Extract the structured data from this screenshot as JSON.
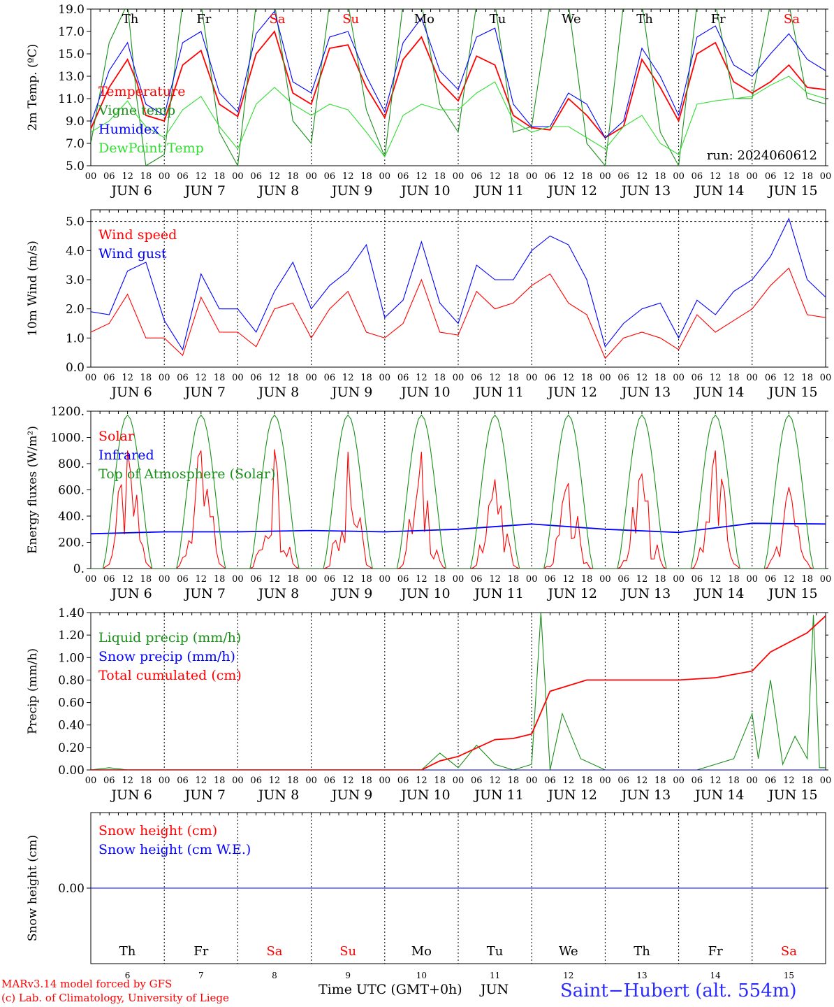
{
  "run_label": "run: 2024060612",
  "footer": {
    "model": "MARv3.14 model forced by GFS",
    "credit": "(c) Lab. of Climatology, University of Liege",
    "xlabel": "Time UTC (GMT+0h)",
    "month": "JUN",
    "station": "Saint−Hubert (alt. 554m)"
  },
  "days": [
    {
      "dow": "Th",
      "date": "6",
      "weekend": false
    },
    {
      "dow": "Fr",
      "date": "7",
      "weekend": false
    },
    {
      "dow": "Sa",
      "date": "8",
      "weekend": true
    },
    {
      "dow": "Su",
      "date": "9",
      "weekend": true
    },
    {
      "dow": "Mo",
      "date": "10",
      "weekend": false
    },
    {
      "dow": "Tu",
      "date": "11",
      "weekend": false
    },
    {
      "dow": "We",
      "date": "12",
      "weekend": false
    },
    {
      "dow": "Th",
      "date": "13",
      "weekend": false
    },
    {
      "dow": "Fr",
      "date": "14",
      "weekend": false
    },
    {
      "dow": "Sa",
      "date": "15",
      "weekend": true
    }
  ],
  "hour_ticks": [
    "00",
    "06",
    "12",
    "18"
  ],
  "colors": {
    "red": "#ff0000",
    "green": "#1a8f1a",
    "blue": "#0000ff",
    "lightgreen": "#33dd33",
    "weekend": "#ff0000",
    "purple": "#8a2be2"
  },
  "chart_data": [
    {
      "type": "line",
      "ylabel": "2m Temp. (ºC)",
      "ylim": [
        5.0,
        19.0
      ],
      "yticks": [
        "5.0",
        "7.0",
        "9.0",
        "11.0",
        "13.0",
        "15.0",
        "17.0",
        "19.0"
      ],
      "hour_step": 3,
      "series": [
        {
          "name": "Temperature",
          "color": "red",
          "x": [
            0,
            6,
            12,
            15,
            18,
            24,
            30,
            36,
            42,
            48,
            54,
            60,
            66,
            72,
            78,
            84,
            90,
            96,
            102,
            108,
            114,
            120,
            126,
            132,
            138,
            144,
            150,
            156,
            162,
            168,
            174,
            180,
            186,
            192,
            198,
            204,
            210,
            216,
            222,
            228,
            234,
            240
          ],
          "values": [
            8.3,
            12.0,
            14.5,
            12.5,
            9.5,
            9.0,
            14.0,
            15.3,
            10.5,
            9.4,
            15.0,
            17.0,
            11.5,
            10.5,
            15.5,
            15.8,
            12.0,
            9.3,
            14.5,
            16.5,
            12.5,
            10.8,
            14.8,
            14.0,
            9.5,
            8.4,
            8.2,
            11.0,
            9.5,
            7.5,
            8.5,
            14.5,
            12.0,
            9.0,
            15.0,
            16.0,
            12.5,
            11.5,
            12.5,
            14.0,
            12.0,
            11.8
          ]
        },
        {
          "name": "Vigne temp",
          "color": "green",
          "x": [
            0,
            6,
            12,
            15,
            18,
            24,
            30,
            36,
            42,
            48,
            54,
            60,
            66,
            72,
            78,
            84,
            90,
            96,
            102,
            108,
            114,
            120,
            126,
            132,
            138,
            144,
            150,
            156,
            162,
            168,
            174,
            180,
            186,
            192,
            198,
            204,
            210,
            216,
            222,
            228,
            234,
            240
          ],
          "values": [
            7.0,
            16.0,
            19.5,
            11.0,
            5.0,
            6.0,
            19.5,
            19.5,
            8.0,
            5.0,
            19.5,
            19.5,
            9.0,
            7.0,
            19.5,
            19.5,
            10.0,
            5.8,
            19.5,
            19.5,
            10.5,
            8.0,
            19.5,
            19.5,
            8.0,
            8.5,
            19.5,
            19.5,
            7.0,
            5.0,
            19.5,
            19.5,
            8.0,
            5.0,
            19.5,
            19.5,
            11.0,
            11.0,
            19.5,
            19.5,
            11.0,
            10.5
          ]
        },
        {
          "name": "Humidex",
          "color": "blue",
          "x": [
            0,
            6,
            12,
            15,
            18,
            24,
            30,
            36,
            42,
            48,
            54,
            60,
            66,
            72,
            78,
            84,
            90,
            96,
            102,
            108,
            114,
            120,
            126,
            132,
            138,
            144,
            150,
            156,
            162,
            168,
            174,
            180,
            186,
            192,
            198,
            204,
            210,
            216,
            222,
            228,
            234,
            240
          ],
          "values": [
            8.8,
            13.5,
            16.0,
            13.0,
            10.5,
            9.5,
            16.0,
            17.0,
            11.5,
            9.8,
            16.8,
            18.8,
            12.5,
            11.5,
            16.5,
            17.0,
            13.0,
            9.8,
            16.0,
            18.2,
            13.5,
            11.8,
            16.5,
            17.3,
            10.5,
            8.5,
            8.5,
            11.5,
            10.5,
            7.5,
            9.0,
            15.5,
            13.0,
            9.5,
            16.5,
            17.5,
            14.0,
            13.0,
            15.0,
            16.8,
            14.5,
            13.5
          ]
        },
        {
          "name": "DewPoint Temp",
          "color": "lightgreen",
          "x": [
            0,
            6,
            12,
            15,
            18,
            24,
            30,
            36,
            42,
            48,
            54,
            60,
            66,
            72,
            78,
            84,
            90,
            96,
            102,
            108,
            114,
            120,
            126,
            132,
            138,
            144,
            150,
            156,
            162,
            168,
            174,
            180,
            186,
            192,
            198,
            204,
            210,
            216,
            222,
            228,
            234,
            240
          ],
          "values": [
            8.0,
            9.0,
            10.8,
            9.5,
            8.5,
            7.5,
            10.0,
            11.2,
            8.5,
            6.5,
            10.5,
            12.0,
            10.5,
            9.5,
            10.5,
            10.0,
            8.0,
            5.8,
            9.5,
            10.5,
            10.0,
            10.0,
            11.5,
            12.5,
            9.0,
            8.0,
            8.5,
            8.5,
            7.5,
            6.5,
            8.5,
            9.5,
            7.0,
            6.0,
            10.5,
            10.8,
            11.0,
            11.2,
            12.2,
            13.0,
            11.5,
            11.0
          ]
        }
      ]
    },
    {
      "type": "line",
      "ylabel": "10m Wind (m/s)",
      "ylim": [
        0.0,
        5.4
      ],
      "yticks": [
        "0.0",
        "1.0",
        "2.0",
        "3.0",
        "4.0",
        "5.0"
      ],
      "reference_line": 5.0,
      "series": [
        {
          "name": "Wind speed",
          "color": "red",
          "x": [
            0,
            6,
            12,
            18,
            24,
            30,
            36,
            42,
            48,
            54,
            60,
            66,
            72,
            78,
            84,
            90,
            96,
            102,
            108,
            114,
            120,
            126,
            132,
            138,
            144,
            150,
            156,
            162,
            168,
            174,
            180,
            186,
            192,
            198,
            204,
            210,
            216,
            222,
            228,
            234,
            240
          ],
          "values": [
            1.2,
            1.5,
            2.5,
            1.0,
            1.0,
            0.4,
            2.4,
            1.2,
            1.2,
            0.7,
            2.0,
            2.2,
            1.0,
            2.0,
            2.6,
            1.2,
            1.0,
            1.5,
            3.0,
            1.2,
            1.1,
            2.6,
            2.0,
            2.2,
            2.8,
            3.2,
            2.2,
            1.8,
            0.3,
            1.0,
            1.2,
            1.0,
            0.6,
            1.8,
            1.2,
            1.6,
            2.0,
            2.8,
            3.4,
            1.8,
            1.7
          ]
        },
        {
          "name": "Wind gust",
          "color": "blue",
          "x": [
            0,
            6,
            12,
            18,
            24,
            30,
            36,
            42,
            48,
            54,
            60,
            66,
            72,
            78,
            84,
            90,
            96,
            102,
            108,
            114,
            120,
            126,
            132,
            138,
            144,
            150,
            156,
            162,
            168,
            174,
            180,
            186,
            192,
            198,
            204,
            210,
            216,
            222,
            228,
            234,
            240
          ],
          "values": [
            1.9,
            1.8,
            3.3,
            3.6,
            1.6,
            0.6,
            3.2,
            2.0,
            2.0,
            1.2,
            2.6,
            3.6,
            2.0,
            2.8,
            3.3,
            4.2,
            1.7,
            2.3,
            4.3,
            2.2,
            1.5,
            3.5,
            3.0,
            3.0,
            4.0,
            4.5,
            4.2,
            3.0,
            0.7,
            1.5,
            2.0,
            2.2,
            1.0,
            2.3,
            1.8,
            2.6,
            3.0,
            3.8,
            5.1,
            3.0,
            2.4
          ]
        }
      ]
    },
    {
      "type": "line",
      "ylabel": "Energy fluxes (W/m²)",
      "ylim": [
        0,
        1200
      ],
      "yticks": [
        "0.",
        "200.",
        "400.",
        "600.",
        "800.",
        "1000.",
        "1200."
      ],
      "series": [
        {
          "name": "Solar",
          "color": "red",
          "daily_peaks": [
            900,
            900,
            910,
            890,
            890,
            680,
            650,
            720,
            900,
            620
          ]
        },
        {
          "name": "Infrared",
          "color": "blue",
          "x": [
            0,
            24,
            48,
            72,
            96,
            120,
            144,
            168,
            192,
            216,
            240
          ],
          "values": [
            265,
            280,
            280,
            290,
            280,
            300,
            340,
            300,
            275,
            345,
            340
          ]
        },
        {
          "name": "Top of Atmosphere (Solar)",
          "color": "green",
          "daily_peaks": [
            1170,
            1170,
            1170,
            1170,
            1170,
            1170,
            1170,
            1170,
            1170,
            1170
          ]
        }
      ]
    },
    {
      "type": "line",
      "ylabel": "Precip (mm/h)",
      "ylim": [
        0.0,
        1.4
      ],
      "yticks": [
        "0.00",
        "0.20",
        "0.40",
        "0.60",
        "0.80",
        "1.00",
        "1.20",
        "1.40"
      ],
      "series": [
        {
          "name": "Liquid precip (mm/h)",
          "color": "green",
          "x": [
            0,
            6,
            12,
            108,
            114,
            120,
            126,
            132,
            138,
            144,
            147,
            150,
            154,
            160,
            168,
            198,
            204,
            210,
            216,
            218,
            222,
            226,
            230,
            234,
            236,
            238,
            240
          ],
          "values": [
            0.0,
            0.02,
            0.0,
            0.0,
            0.15,
            0.02,
            0.22,
            0.05,
            0.0,
            0.05,
            1.4,
            0.0,
            0.5,
            0.1,
            0.0,
            0.0,
            0.05,
            0.1,
            0.5,
            0.1,
            0.8,
            0.05,
            0.3,
            0.1,
            1.38,
            0.02,
            0.02
          ]
        },
        {
          "name": "Snow precip (mm/h)",
          "color": "blue",
          "x": [
            0,
            240
          ],
          "values": [
            0.0,
            0.0
          ]
        },
        {
          "name": "Total cumulated (cm)",
          "color": "red",
          "x": [
            0,
            108,
            114,
            120,
            132,
            138,
            144,
            150,
            162,
            192,
            204,
            216,
            222,
            234,
            240
          ],
          "values": [
            0.0,
            0.0,
            0.08,
            0.12,
            0.27,
            0.28,
            0.32,
            0.7,
            0.8,
            0.8,
            0.82,
            0.88,
            1.05,
            1.22,
            1.37
          ]
        }
      ]
    },
    {
      "type": "line",
      "ylabel": "Snow height (cm)",
      "ylim": [
        -1,
        1
      ],
      "yticks": [
        "0.00"
      ],
      "series": [
        {
          "name": "Snow height (cm)",
          "color": "red",
          "x": [
            0,
            240
          ],
          "values": [
            0.0,
            0.0
          ]
        },
        {
          "name": "Snow height (cm W.E.)",
          "color": "blue",
          "x": [
            0,
            240
          ],
          "values": [
            0.0,
            0.0
          ]
        }
      ]
    }
  ]
}
